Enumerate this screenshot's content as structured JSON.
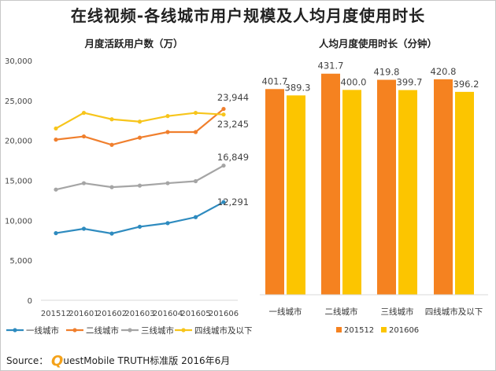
{
  "title": "在线视频-各线城市用户规模及人均月度使用时长",
  "source": {
    "label": "Source：",
    "brand_initial": "Q",
    "brand_rest": "uestMobile TRUTH标准版 2016年6月"
  },
  "colors": {
    "tier1": "#2e8bbf",
    "tier2": "#f07f2d",
    "tier3": "#a5a5a5",
    "tier4": "#f7c51b",
    "bar_201512": "#f58220",
    "bar_201606": "#fcc500"
  },
  "chart_data": [
    {
      "type": "line",
      "title": "月度活跃用户数（万）",
      "categories": [
        "201512",
        "201601",
        "201602",
        "201603",
        "201604",
        "201605",
        "201606"
      ],
      "ylim": [
        0,
        30000
      ],
      "yticks": [
        "0",
        "5,000",
        "10,000",
        "15,000",
        "20,000",
        "25,000",
        "30,000"
      ],
      "grid": false,
      "legend_position": "bottom",
      "series": [
        {
          "name": "一线城市",
          "values": [
            8400,
            8950,
            8350,
            9200,
            9650,
            10400,
            12291
          ],
          "end_label": "12,291"
        },
        {
          "name": "二线城市",
          "values": [
            20100,
            20500,
            19450,
            20350,
            21050,
            21050,
            23944
          ],
          "end_label": "23,944"
        },
        {
          "name": "三线城市",
          "values": [
            13850,
            14650,
            14150,
            14350,
            14650,
            14900,
            16849
          ],
          "end_label": "16,849"
        },
        {
          "name": "四线城市及以下",
          "values": [
            21500,
            23450,
            22650,
            22350,
            23050,
            23450,
            23245
          ],
          "end_label": "23,245"
        }
      ]
    },
    {
      "type": "bar",
      "title": "人均月度使用时长（分钟）",
      "categories": [
        "一线城市",
        "二线城市",
        "三线城市",
        "四线城市及以下"
      ],
      "ylim": [
        0,
        500
      ],
      "grid": false,
      "legend_position": "bottom",
      "series": [
        {
          "name": "201512",
          "values": [
            401.7,
            431.7,
            419.8,
            420.8
          ],
          "labels": [
            "401.7",
            "431.7",
            "419.8",
            "420.8"
          ]
        },
        {
          "name": "201606",
          "values": [
            389.3,
            400.0,
            399.7,
            396.2
          ],
          "labels": [
            "389.3",
            "400.0",
            "399.7",
            "396.2"
          ]
        }
      ]
    }
  ]
}
